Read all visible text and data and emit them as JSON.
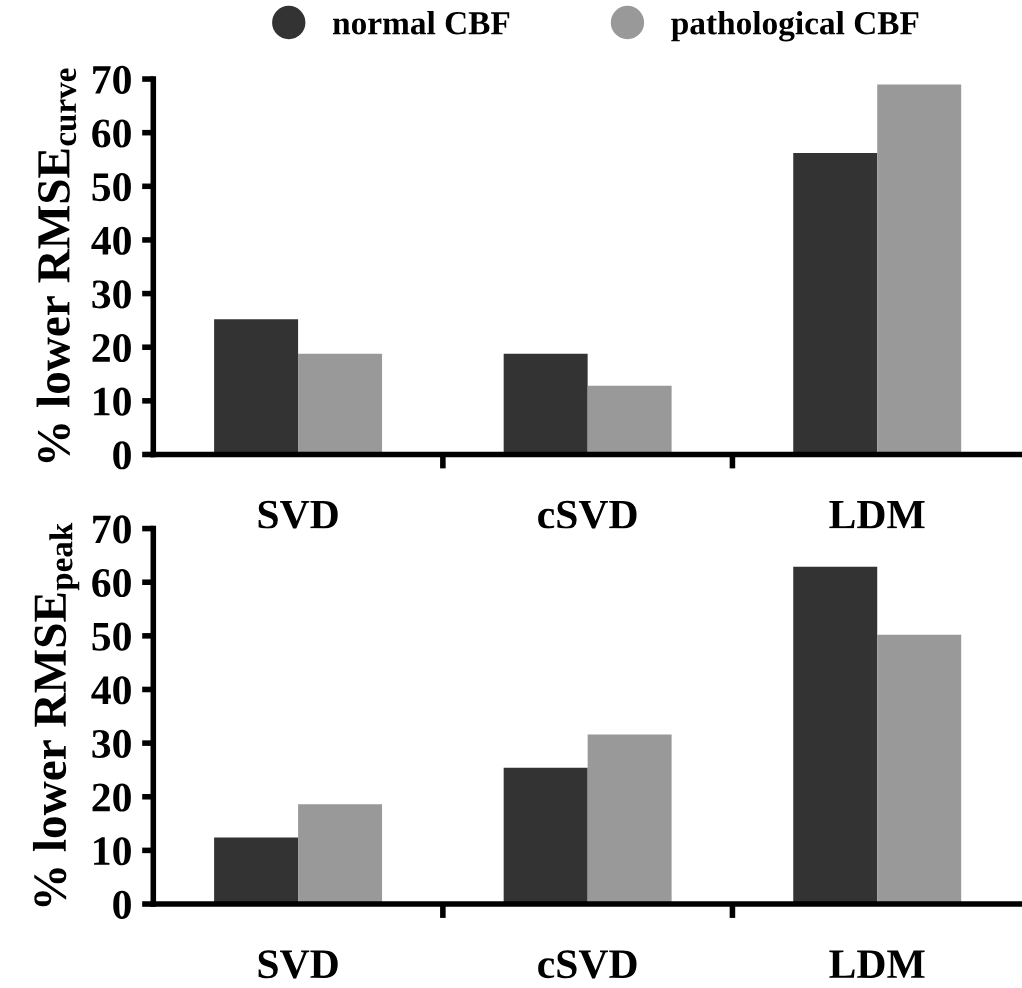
{
  "chart_data": [
    {
      "type": "bar",
      "categories": [
        "SVD",
        "cSVD",
        "LDM"
      ],
      "ylabel": "% lower RMSE$_{curve}$",
      "series": [
        {
          "name": "normal CBF",
          "color": "#333333",
          "values": [
            25.2,
            18.8,
            56.2
          ]
        },
        {
          "name": "pathological CBF",
          "color": "#999999",
          "values": [
            18.8,
            12.8,
            69
          ]
        }
      ],
      "ylim": [
        0,
        70
      ],
      "yticks": [
        0,
        10,
        20,
        30,
        40,
        50,
        60,
        70
      ],
      "grid": false,
      "legend": "top",
      "marker": "circle"
    },
    {
      "type": "bar",
      "categories": [
        "SVD",
        "cSVD",
        "LDM"
      ],
      "ylabel": "% lower RMSE$_{peak}$",
      "series": [
        {
          "color": "#333333",
          "values": [
            12.4,
            25.4,
            62.9
          ]
        },
        {
          "color": "#999999",
          "values": [
            18.6,
            31.6,
            50.2
          ]
        }
      ],
      "ylim": [
        0,
        70
      ],
      "yticks": [
        0,
        10,
        20,
        30,
        40,
        50,
        60,
        70
      ],
      "grid": false,
      "legend": false
    }
  ]
}
